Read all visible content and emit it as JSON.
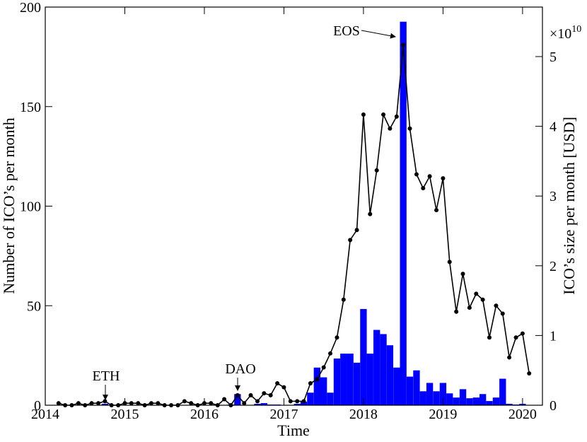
{
  "chart_data": {
    "type": "combo",
    "xlabel": "Time",
    "ylabel": "Number of ICO’s per month",
    "y2label": "ICO’s size per month [USD]",
    "y2_multiplier": {
      "base": "×10",
      "exponent": "10"
    },
    "annotations": [
      {
        "text": "ETH"
      },
      {
        "text": "DAO"
      },
      {
        "text": "EOS"
      }
    ],
    "xlim": [
      2014,
      2020.25
    ],
    "xticks": [
      2014,
      2015,
      2016,
      2017,
      2018,
      2019,
      2020
    ],
    "ylim": [
      0,
      200
    ],
    "yticks": [
      0,
      50,
      100,
      150,
      200
    ],
    "y2lim": [
      0,
      5.71
    ],
    "y2ticks": [
      0,
      1,
      2,
      3,
      4,
      5
    ],
    "x": [
      2014.167,
      2014.25,
      2014.333,
      2014.417,
      2014.5,
      2014.583,
      2014.667,
      2014.75,
      2014.833,
      2014.917,
      2015,
      2015.083,
      2015.167,
      2015.25,
      2015.333,
      2015.417,
      2015.5,
      2015.583,
      2015.667,
      2015.75,
      2015.833,
      2015.917,
      2016,
      2016.083,
      2016.167,
      2016.25,
      2016.333,
      2016.417,
      2016.5,
      2016.583,
      2016.667,
      2016.75,
      2016.833,
      2016.917,
      2017,
      2017.083,
      2017.167,
      2017.25,
      2017.333,
      2017.417,
      2017.5,
      2017.583,
      2017.667,
      2017.75,
      2017.833,
      2017.917,
      2018,
      2018.083,
      2018.167,
      2018.25,
      2018.333,
      2018.417,
      2018.5,
      2018.583,
      2018.667,
      2018.75,
      2018.833,
      2018.917,
      2019,
      2019.083,
      2019.167,
      2019.25,
      2019.333,
      2019.417,
      2019.5,
      2019.583,
      2019.667,
      2019.75,
      2019.833,
      2019.917,
      2020,
      2020.083
    ],
    "series": [
      {
        "type": "bar",
        "axis": "y2",
        "color": "#0000ff",
        "values": [
          0,
          0,
          0,
          0,
          0,
          0,
          0,
          0.02,
          0,
          0,
          0,
          0,
          0,
          0,
          0,
          0,
          0,
          0,
          0,
          0,
          0,
          0,
          0,
          0,
          0,
          0,
          0.01,
          0.16,
          0,
          0,
          0.02,
          0.03,
          0.01,
          0.01,
          0,
          0,
          0.02,
          0.05,
          0.18,
          0.54,
          0.4,
          0.18,
          0.67,
          0.74,
          0.74,
          0.61,
          1.38,
          0.74,
          1.08,
          1.02,
          0.86,
          0.54,
          5.5,
          0.41,
          0.5,
          0.2,
          0.32,
          0.2,
          0.32,
          0.17,
          0.11,
          0.23,
          0.1,
          0.11,
          0.16,
          0.06,
          0.11,
          0.38,
          0.02,
          0.01,
          0.02,
          0
        ]
      },
      {
        "type": "line",
        "color": "#000000",
        "values": [
          1,
          0,
          0,
          1,
          0,
          1,
          1,
          2,
          0,
          0,
          1,
          1,
          1,
          0,
          1,
          1,
          0,
          0,
          0,
          2,
          1,
          0,
          1,
          1,
          0,
          3,
          0,
          5,
          1,
          5,
          2,
          6,
          5,
          11,
          9,
          2,
          2,
          2,
          11,
          13,
          19,
          26,
          34,
          53,
          83,
          88,
          146,
          96,
          118,
          146,
          139,
          145,
          181,
          139,
          116,
          109,
          115,
          98,
          114,
          72,
          47,
          66,
          49,
          56,
          53,
          34,
          50,
          46,
          24,
          34,
          36,
          16
        ]
      }
    ]
  }
}
